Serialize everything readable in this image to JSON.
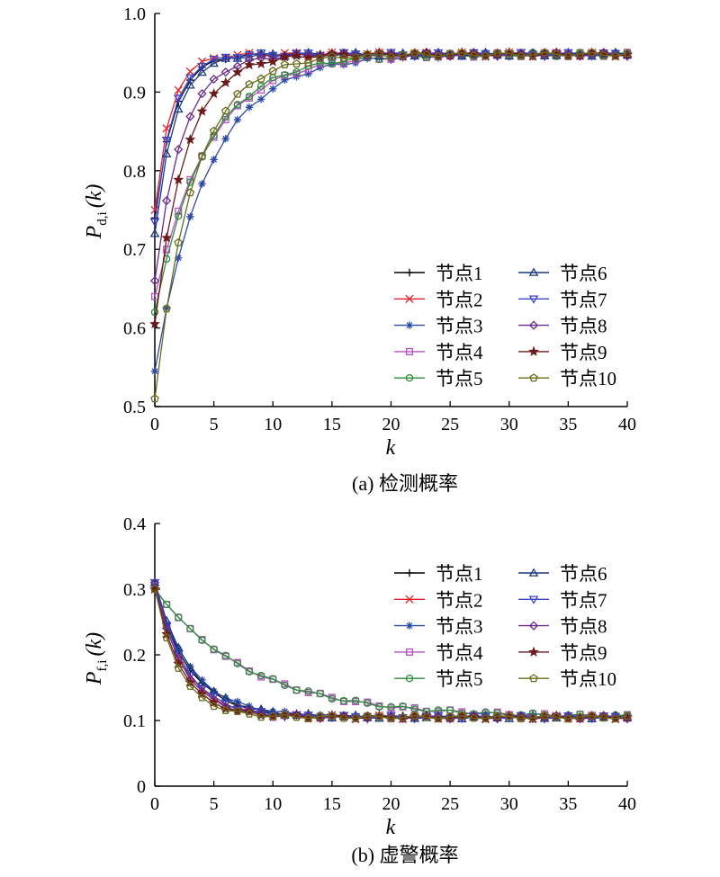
{
  "colors": {
    "axis": "#000000",
    "series": [
      "#000000",
      "#e8242a",
      "#2b4aa6",
      "#b54fc0",
      "#2e8b3c",
      "#1c3a78",
      "#3a46c8",
      "#6a2a8c",
      "#6b1a1a",
      "#6b6b1e"
    ]
  },
  "markers": [
    "plus",
    "x",
    "asterisk",
    "square",
    "circle",
    "triangle-up",
    "triangle-down",
    "diamond",
    "star",
    "pentagon"
  ],
  "chart_data": [
    {
      "type": "line",
      "caption": "(a) 检测概率",
      "xlabel": "k",
      "ylabel_base": "P",
      "ylabel_sub": "d,i",
      "ylabel_arg": "(k)",
      "xlim": [
        0,
        40
      ],
      "ylim": [
        0.5,
        1.0
      ],
      "xticks": [
        0,
        5,
        10,
        15,
        20,
        25,
        30,
        35,
        40
      ],
      "yticks": [
        0.5,
        0.6,
        0.7,
        0.8,
        0.9,
        1.0
      ],
      "ytick_labels": [
        "0.5",
        "0.6",
        "0.7",
        "0.8",
        "0.9",
        "1.0"
      ],
      "legend_position": "bottom-right",
      "series": [
        {
          "name": "节点1",
          "start": 0.74,
          "end": 0.948,
          "tau": 1.6
        },
        {
          "name": "节点2",
          "start": 0.75,
          "end": 0.948,
          "tau": 1.35
        },
        {
          "name": "节点3",
          "start": 0.545,
          "end": 0.948,
          "tau": 4.5
        },
        {
          "name": "节点4",
          "start": 0.64,
          "end": 0.948,
          "tau": 4.6
        },
        {
          "name": "节点5",
          "start": 0.62,
          "end": 0.948,
          "tau": 4.3
        },
        {
          "name": "节点6",
          "start": 0.72,
          "end": 0.948,
          "tau": 1.7
        },
        {
          "name": "节点7",
          "start": 0.735,
          "end": 0.948,
          "tau": 1.5
        },
        {
          "name": "节点8",
          "start": 0.66,
          "end": 0.948,
          "tau": 2.3
        },
        {
          "name": "节点9",
          "start": 0.605,
          "end": 0.948,
          "tau": 2.6
        },
        {
          "name": "节点10",
          "start": 0.51,
          "end": 0.948,
          "tau": 3.3
        }
      ]
    },
    {
      "type": "line",
      "caption": "(b) 虚警概率",
      "xlabel": "k",
      "ylabel_base": "P",
      "ylabel_sub": "f,i",
      "ylabel_arg": "(k)",
      "xlim": [
        0,
        40
      ],
      "ylim": [
        0,
        0.4
      ],
      "xticks": [
        0,
        5,
        10,
        15,
        20,
        25,
        30,
        35,
        40
      ],
      "yticks": [
        0,
        0.1,
        0.2,
        0.3,
        0.4
      ],
      "ytick_labels": [
        "0",
        "0.1",
        "0.2",
        "0.3",
        "0.4"
      ],
      "legend_position": "top-right",
      "series": [
        {
          "name": "节点1",
          "start": 0.3,
          "end": 0.105,
          "tau": 3.0
        },
        {
          "name": "节点2",
          "start": 0.3,
          "end": 0.105,
          "tau": 2.6
        },
        {
          "name": "节点3",
          "start": 0.3,
          "end": 0.105,
          "tau": 3.2
        },
        {
          "name": "节点4",
          "start": 0.3,
          "end": 0.105,
          "tau": 8.0
        },
        {
          "name": "节点5",
          "start": 0.3,
          "end": 0.105,
          "tau": 8.0
        },
        {
          "name": "节点6",
          "start": 0.31,
          "end": 0.105,
          "tau": 3.0
        },
        {
          "name": "节点7",
          "start": 0.31,
          "end": 0.105,
          "tau": 2.6
        },
        {
          "name": "节点8",
          "start": 0.31,
          "end": 0.105,
          "tau": 2.4
        },
        {
          "name": "节点9",
          "start": 0.3,
          "end": 0.105,
          "tau": 2.3
        },
        {
          "name": "节点10",
          "start": 0.3,
          "end": 0.105,
          "tau": 2.1
        }
      ]
    }
  ]
}
